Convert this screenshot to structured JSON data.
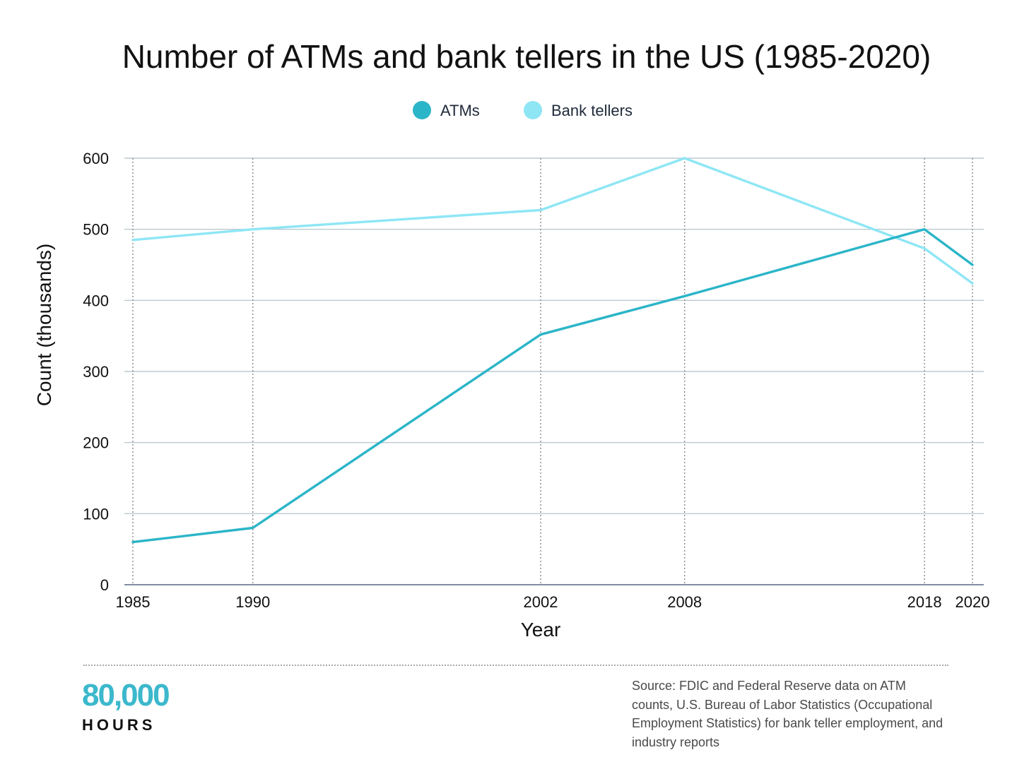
{
  "chart_data": {
    "type": "line",
    "title": "Number of ATMs and bank tellers in the US (1985-2020)",
    "xlabel": "Year",
    "ylabel": "Count (thousands)",
    "x": [
      1985,
      1990,
      2002,
      2008,
      2018,
      2020
    ],
    "x_tick_labels": [
      "1985",
      "1990",
      "2002",
      "2008",
      "2018",
      "2020"
    ],
    "xlim": [
      1985,
      2020
    ],
    "ylim": [
      0,
      600
    ],
    "y_ticks": [
      0,
      100,
      200,
      300,
      400,
      500,
      600
    ],
    "y_tick_labels": [
      "0",
      "100",
      "200",
      "300",
      "400",
      "500",
      "600"
    ],
    "grid": true,
    "legend_position": "top-center",
    "series": [
      {
        "name": "ATMs",
        "color": "#2bb5c8",
        "values": [
          60,
          80,
          352,
          406,
          500,
          450
        ]
      },
      {
        "name": "Bank tellers",
        "color": "#8ee6f5",
        "values": [
          485,
          500,
          527,
          600,
          473,
          424
        ]
      }
    ]
  },
  "footer": {
    "logo_number": "80,000",
    "logo_word": "HOURS",
    "source": "Source: FDIC and Federal Reserve data on ATM counts, U.S. Bureau of Labor Statistics (Occupational Employment Statistics) for bank teller employment, and industry reports"
  }
}
